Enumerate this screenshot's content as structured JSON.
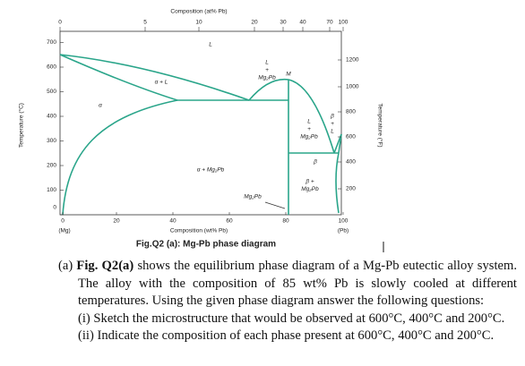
{
  "figure": {
    "top_axis": {
      "label": "Composition (at% Pb)",
      "ticks": [
        "0",
        "5",
        "10",
        "20",
        "30",
        "40",
        "70",
        "100"
      ]
    },
    "bottom_axis": {
      "label": "Composition (wt% Pb)",
      "ticks": [
        "0",
        "20",
        "40",
        "60",
        "80",
        "100"
      ],
      "left_end": "(Mg)",
      "right_end": "(Pb)"
    },
    "left_axis": {
      "label": "Temperature (°C)",
      "ticks": [
        "700",
        "600",
        "500",
        "400",
        "300",
        "200",
        "100",
        "0"
      ]
    },
    "right_axis": {
      "label": "Temperature (°F)",
      "ticks": [
        "1200",
        "1000",
        "800",
        "600",
        "400",
        "200"
      ]
    },
    "regions": [
      {
        "lines": [
          "L"
        ]
      },
      {
        "lines": [
          "α + L"
        ]
      },
      {
        "lines": [
          "α"
        ]
      },
      {
        "lines": [
          "L",
          "+",
          "Mg₂Pb"
        ]
      },
      {
        "lines": [
          "M"
        ]
      },
      {
        "lines": [
          "α + Mg₂Pb"
        ]
      },
      {
        "lines": [
          "Mg₂Pb"
        ]
      },
      {
        "lines": [
          "L",
          "+",
          "Mg₂Pb"
        ]
      },
      {
        "lines": [
          "β",
          "+",
          "L"
        ]
      },
      {
        "lines": [
          "β"
        ]
      },
      {
        "lines": [
          "β +",
          "Mg₂Pb"
        ]
      }
    ]
  },
  "caption": "Fig.Q2 (a): Mg-Pb phase diagram",
  "question": {
    "label": "(a)",
    "ref": "Fig. Q2(a)",
    "text": "shows the equilibrium phase diagram of a Mg-Pb eutectic alloy system. The alloy with the composition of 85 wt% Pb is slowly cooled at different temperatures. Using the given phase diagram answer the following questions:",
    "items": [
      "(i) Sketch the microstructure that would be observed at 600°C, 400°C and 200°C.",
      "(ii) Indicate the composition of each phase present at 600°C, 400°C and 200°C."
    ]
  }
}
